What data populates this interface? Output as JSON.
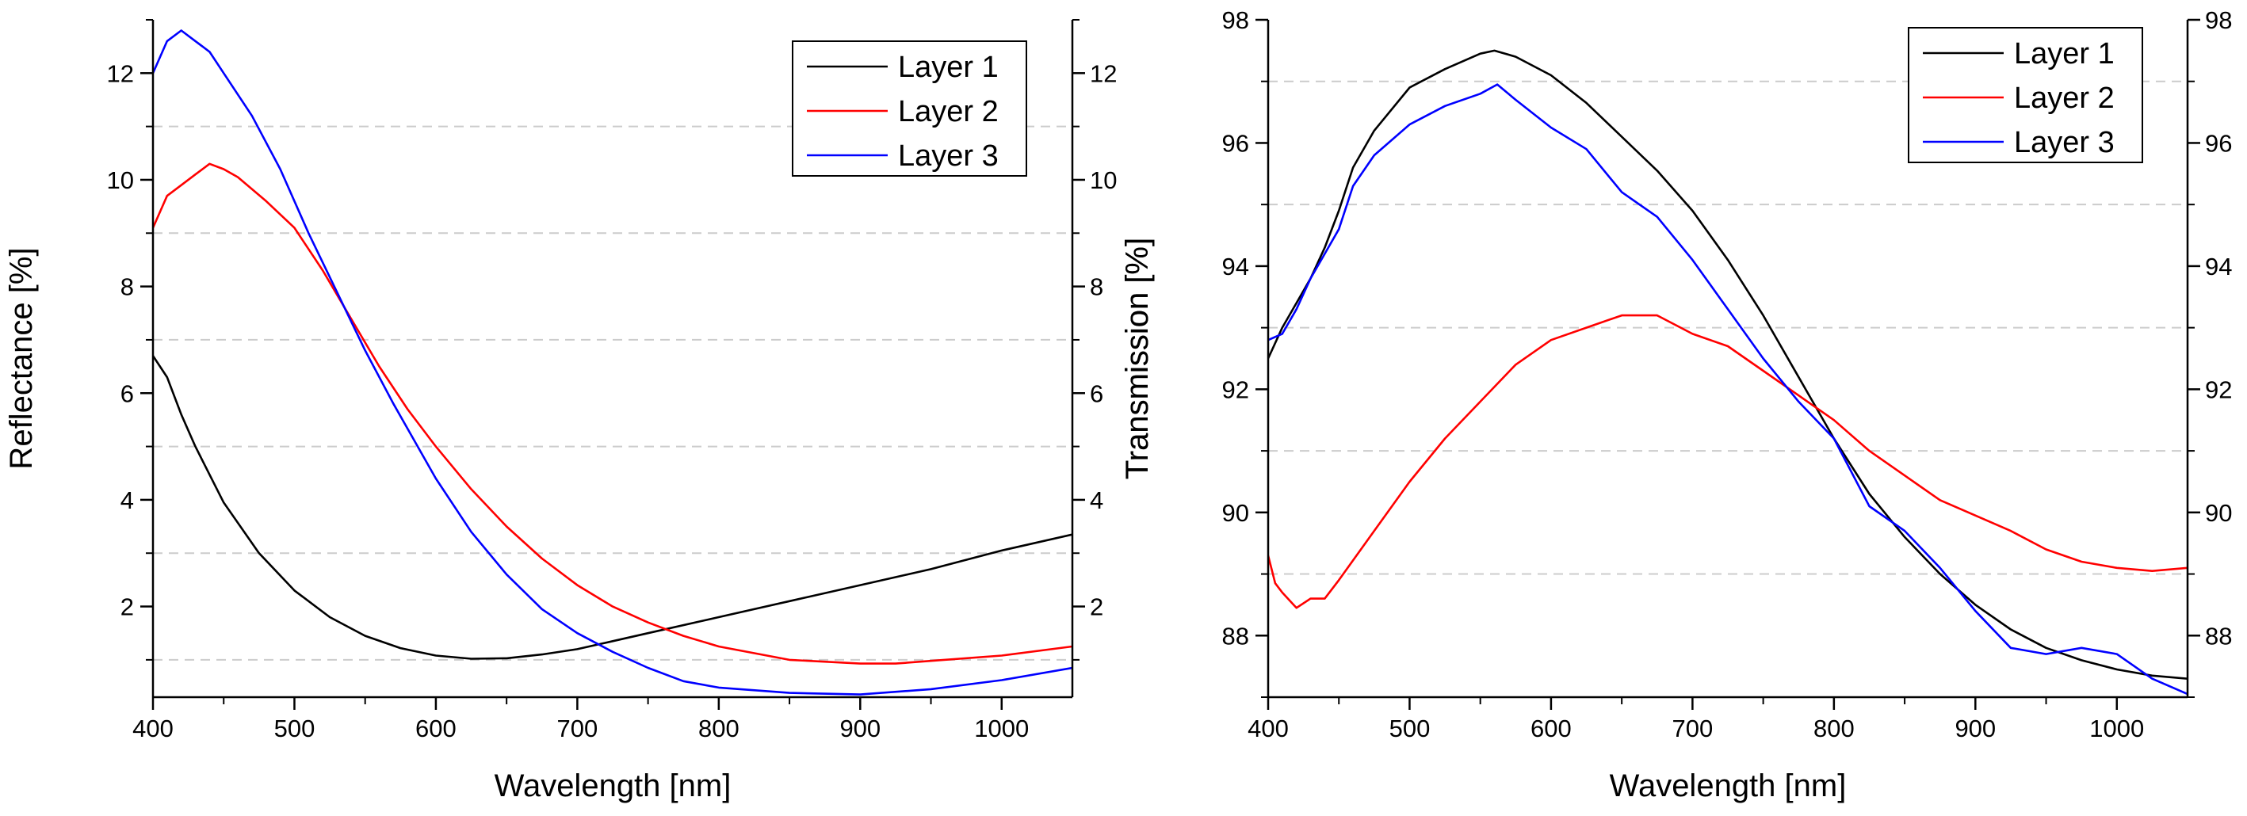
{
  "chart_data": [
    {
      "type": "line",
      "xlabel": "Wavelength [nm]",
      "ylabel": "Reflectance [%]",
      "ylabel_right": "Transmission [%]",
      "xlim": [
        400,
        1050
      ],
      "ylim": [
        0.3,
        13
      ],
      "xticks": [
        400,
        500,
        600,
        700,
        800,
        900,
        1000
      ],
      "yticks": [
        2,
        4,
        6,
        8,
        10,
        12
      ],
      "gridlines_y": [
        1,
        3,
        5,
        7,
        9,
        11
      ],
      "legend_position": "top-right",
      "legend": [
        "Layer 1",
        "Layer 2",
        "Layer 3"
      ],
      "series": [
        {
          "name": "Layer 1",
          "color": "#000000",
          "x": [
            400,
            410,
            420,
            430,
            450,
            475,
            500,
            525,
            550,
            575,
            600,
            625,
            650,
            675,
            700,
            725,
            750,
            800,
            850,
            900,
            950,
            1000,
            1050
          ],
          "y": [
            6.7,
            6.3,
            5.6,
            5.0,
            3.95,
            3.0,
            2.3,
            1.8,
            1.45,
            1.22,
            1.08,
            1.02,
            1.03,
            1.1,
            1.2,
            1.35,
            1.5,
            1.8,
            2.1,
            2.4,
            2.7,
            3.05,
            3.35
          ]
        },
        {
          "name": "Layer 2",
          "color": "#ff0000",
          "x": [
            400,
            410,
            420,
            430,
            440,
            450,
            460,
            480,
            500,
            520,
            540,
            560,
            580,
            600,
            625,
            650,
            675,
            700,
            725,
            750,
            775,
            800,
            850,
            900,
            925,
            950,
            1000,
            1050
          ],
          "y": [
            9.1,
            9.7,
            9.9,
            10.1,
            10.3,
            10.2,
            10.05,
            9.6,
            9.1,
            8.3,
            7.4,
            6.5,
            5.7,
            5.0,
            4.2,
            3.5,
            2.9,
            2.4,
            2.0,
            1.7,
            1.45,
            1.25,
            1.0,
            0.93,
            0.93,
            0.98,
            1.08,
            1.25
          ]
        },
        {
          "name": "Layer 3",
          "color": "#0000ff",
          "x": [
            400,
            405,
            410,
            420,
            430,
            440,
            450,
            470,
            490,
            510,
            530,
            550,
            570,
            600,
            625,
            650,
            675,
            700,
            725,
            750,
            775,
            800,
            850,
            900,
            950,
            1000,
            1050
          ],
          "y": [
            12.0,
            12.3,
            12.6,
            12.8,
            12.6,
            12.4,
            12.0,
            11.2,
            10.2,
            9.0,
            7.9,
            6.8,
            5.8,
            4.4,
            3.4,
            2.6,
            1.95,
            1.5,
            1.15,
            0.85,
            0.6,
            0.48,
            0.38,
            0.35,
            0.45,
            0.62,
            0.85
          ]
        }
      ]
    },
    {
      "type": "line",
      "xlabel": "Wavelength [nm]",
      "ylabel": "Transmission [%]",
      "xlim": [
        400,
        1050
      ],
      "ylim": [
        87,
        98
      ],
      "xticks": [
        400,
        500,
        600,
        700,
        800,
        900,
        1000
      ],
      "yticks": [
        88,
        90,
        92,
        94,
        96,
        98
      ],
      "gridlines_y": [
        89,
        91,
        93,
        95,
        97
      ],
      "legend_position": "top-right",
      "legend": [
        "Layer 1",
        "Layer 2",
        "Layer 3"
      ],
      "series": [
        {
          "name": "Layer 1",
          "color": "#000000",
          "x": [
            400,
            410,
            420,
            430,
            440,
            450,
            460,
            475,
            500,
            525,
            550,
            560,
            575,
            600,
            625,
            650,
            675,
            700,
            725,
            750,
            775,
            800,
            825,
            850,
            875,
            900,
            925,
            950,
            975,
            1000,
            1025,
            1050
          ],
          "y": [
            92.5,
            93.0,
            93.4,
            93.8,
            94.3,
            94.9,
            95.6,
            96.2,
            96.9,
            97.2,
            97.45,
            97.5,
            97.4,
            97.1,
            96.65,
            96.1,
            95.55,
            94.9,
            94.1,
            93.2,
            92.2,
            91.2,
            90.3,
            89.6,
            89.0,
            88.5,
            88.1,
            87.8,
            87.6,
            87.45,
            87.35,
            87.3
          ]
        },
        {
          "name": "Layer 2",
          "color": "#ff0000",
          "x": [
            400,
            405,
            410,
            420,
            430,
            440,
            450,
            475,
            500,
            525,
            550,
            575,
            600,
            625,
            650,
            675,
            700,
            725,
            750,
            775,
            800,
            825,
            850,
            875,
            900,
            925,
            950,
            975,
            1000,
            1025,
            1050
          ],
          "y": [
            89.3,
            88.85,
            88.7,
            88.45,
            88.6,
            88.6,
            88.9,
            89.7,
            90.5,
            91.2,
            91.8,
            92.4,
            92.8,
            93.0,
            93.2,
            93.2,
            92.9,
            92.7,
            92.3,
            91.9,
            91.5,
            91.0,
            90.6,
            90.2,
            89.95,
            89.7,
            89.4,
            89.2,
            89.1,
            89.05,
            89.1
          ]
        },
        {
          "name": "Layer 3",
          "color": "#0000ff",
          "x": [
            400,
            410,
            420,
            430,
            440,
            450,
            460,
            475,
            500,
            525,
            550,
            562,
            575,
            600,
            625,
            650,
            675,
            700,
            725,
            750,
            775,
            800,
            825,
            850,
            875,
            900,
            925,
            950,
            975,
            1000,
            1025,
            1050
          ],
          "y": [
            92.8,
            92.9,
            93.3,
            93.8,
            94.2,
            94.6,
            95.3,
            95.8,
            96.3,
            96.6,
            96.8,
            96.95,
            96.7,
            96.25,
            95.9,
            95.2,
            94.8,
            94.1,
            93.3,
            92.5,
            91.8,
            91.2,
            90.1,
            89.7,
            89.1,
            88.4,
            87.8,
            87.7,
            87.8,
            87.7,
            87.3,
            87.05
          ]
        }
      ]
    }
  ]
}
